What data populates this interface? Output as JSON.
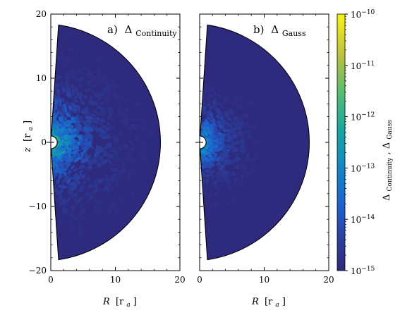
{
  "chart_data": [
    {
      "type": "heatmap",
      "panel_label": "a)",
      "title": "Δ",
      "title_sub": "Continuity",
      "xlabel": "R",
      "xlabel_unit": "[r",
      "xlabel_unit_sub": "a",
      "xlabel_unit_end": "]",
      "ylabel": "z",
      "ylabel_unit": "[r",
      "ylabel_unit_sub": "a",
      "ylabel_unit_end": "]",
      "xlim": [
        0,
        20
      ],
      "ylim": [
        -20,
        20
      ],
      "xticks": [
        0,
        10,
        20
      ],
      "yticks": [
        -20,
        -10,
        0,
        10,
        20
      ],
      "xtick_labels": [
        "0",
        "10",
        "20"
      ],
      "ytick_labels": [
        "−20",
        "−10",
        "0",
        "10",
        "20"
      ],
      "domain": {
        "shape": "half-disk",
        "inner_radius": 1,
        "outer_radius": 18.5,
        "inner_edge_flare": 1.2
      },
      "field": {
        "description_scale": "log10",
        "background_exponent": -15,
        "peak_exponent": -11.6,
        "decay_length": 4.5,
        "extent_radius": 15,
        "speckle_count": 1300,
        "seed": 11
      }
    },
    {
      "type": "heatmap",
      "panel_label": "b)",
      "title": "Δ",
      "title_sub": "Gauss",
      "xlabel": "R",
      "xlabel_unit": "[r",
      "xlabel_unit_sub": "a",
      "xlabel_unit_end": "]",
      "xlim": [
        0,
        20
      ],
      "ylim": [
        -20,
        20
      ],
      "xticks": [
        0,
        10,
        20
      ],
      "yticks": [
        -20,
        -10,
        0,
        10,
        20
      ],
      "xtick_labels": [
        "0",
        "10",
        "20"
      ],
      "domain": {
        "shape": "half-disk",
        "inner_radius": 1,
        "outer_radius": 18.5,
        "inner_edge_flare": 1.2
      },
      "field": {
        "description_scale": "log10",
        "background_exponent": -15,
        "peak_exponent": -12.2,
        "decay_length": 3.2,
        "extent_radius": 10,
        "speckle_count": 700,
        "seed": 29
      }
    }
  ],
  "colorbar": {
    "scale": "log",
    "colormap": "viridis",
    "min_exponent": -15,
    "max_exponent": -10,
    "tick_exponents": [
      -10,
      -11,
      -12,
      -13,
      -14,
      -15
    ],
    "tick_base": "10",
    "tick_labels": [
      "−10",
      "−11",
      "−12",
      "−13",
      "−14",
      "−15"
    ],
    "label_main_1": "Δ",
    "label_sub_1": "Continuity",
    "label_sep": ", ",
    "label_main_2": "Δ",
    "label_sub_2": "Gauss"
  },
  "colors": {
    "background": "#2e2a7e",
    "outline": "#000000",
    "inner_hole": "#ffffff"
  }
}
